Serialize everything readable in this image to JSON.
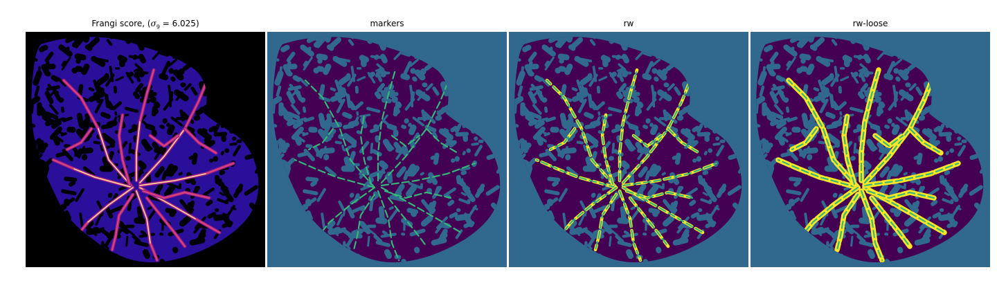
{
  "panels": [
    {
      "id": "frangi",
      "title_prefix": "Frangi score, (",
      "title_sigma": "σ",
      "title_sub": "9",
      "title_suffix": " = 6.025)",
      "colormap": "magma"
    },
    {
      "id": "markers",
      "title": "markers",
      "colormap": "viridis"
    },
    {
      "id": "rw",
      "title": "rw",
      "colormap": "viridis"
    },
    {
      "id": "rw-loose",
      "title": "rw-loose",
      "colormap": "viridis"
    }
  ],
  "colors": {
    "frangi_background": "#000000",
    "frangi_tissue": "#2a0f9a",
    "frangi_vessel_low": "#8a1a8a",
    "frangi_vessel_mid": "#d8407a",
    "frangi_vessel_high": "#fdd9a0",
    "label_background": "#31688e",
    "label_tissue": "#440154",
    "label_marker": "#35b779",
    "label_vessel": "#fde725"
  }
}
